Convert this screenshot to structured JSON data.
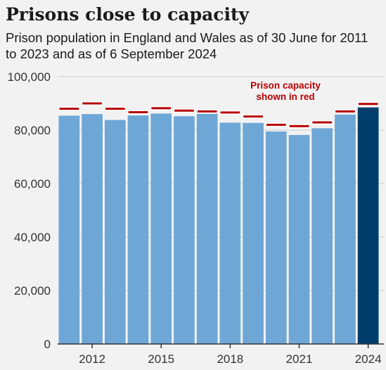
{
  "chart_data": {
    "type": "bar",
    "title": "Prisons close to capacity",
    "subtitle": "Prison population in England and Wales as of 30 June for 2011 to 2023 and as of 6 September 2024",
    "xlabel": "",
    "ylabel": "",
    "ylim": [
      0,
      100000
    ],
    "y_ticks": [
      0,
      20000,
      40000,
      60000,
      80000,
      100000
    ],
    "y_tick_labels": [
      "0",
      "20,000",
      "40,000",
      "60,000",
      "80,000",
      "100,000"
    ],
    "categories": [
      "2011",
      "2012",
      "2013",
      "2014",
      "2015",
      "2016",
      "2017",
      "2018",
      "2019",
      "2020",
      "2021",
      "2022",
      "2023",
      "2024"
    ],
    "x_tick_labels": [
      "2012",
      "2015",
      "2018",
      "2021",
      "2024"
    ],
    "series": [
      {
        "name": "Prison population",
        "values": [
          85400,
          86000,
          83800,
          85500,
          86200,
          85200,
          86100,
          82800,
          82700,
          79500,
          78200,
          80700,
          85800,
          88500
        ]
      },
      {
        "name": "Prison capacity",
        "values": [
          88000,
          90000,
          88000,
          86700,
          88200,
          87300,
          87000,
          86600,
          85100,
          82000,
          81500,
          82900,
          87000,
          89800
        ]
      }
    ],
    "annotation": {
      "line1": "Prison capacity",
      "line2": "shown in red"
    },
    "grid": true,
    "colors": {
      "bar": "#6ea7d6",
      "bar_highlight": "#003e6b",
      "capacity": "#b80000",
      "grid": "#cccccc",
      "background": "#f2f2f2"
    }
  }
}
